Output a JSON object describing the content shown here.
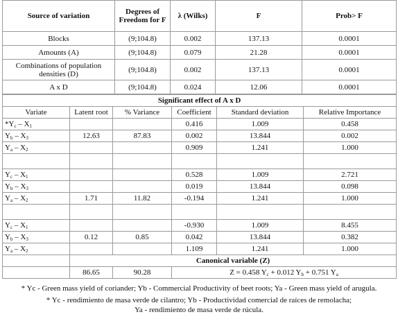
{
  "table": {
    "header": [
      "Source of variation",
      "Degrees of Freedom for F",
      "λ (Wilks)",
      "F",
      "Prob> F"
    ],
    "rows": [
      [
        "Blocks",
        "(9;104.8)",
        "0.002",
        "137.13",
        "0.0001"
      ],
      [
        "Amounts (A)",
        "(9;104.8)",
        "0.079",
        "21.28",
        "0.0001"
      ],
      [
        "Combinations of population densities (D)",
        "(9;104.8)",
        "0.002",
        "137.13",
        "0.0001"
      ],
      [
        "A x D",
        "(9;104.8)",
        "0.024",
        "12.06",
        "0.0001"
      ]
    ],
    "section_title": "Significant effect of A x D",
    "sub_header": [
      "Variate",
      "Latent root",
      "% Variance",
      "Coefficient",
      "Standard deviation",
      "Relative Importance"
    ],
    "groups": [
      {
        "rows": [
          {
            "variate": [
              "*Y",
              "c",
              " – X",
              "1"
            ],
            "coefficient": "0.416",
            "sd": "1.009",
            "importance": "0.458"
          },
          {
            "variate": [
              "Y",
              "b",
              " – X",
              "3"
            ],
            "latent_root": "12.63",
            "variance": "87.83",
            "coefficient": "0.002",
            "sd": "13.844",
            "importance": "0.002"
          },
          {
            "variate": [
              "Y",
              "a",
              " – X",
              "2"
            ],
            "coefficient": "0.909",
            "sd": "1.241",
            "importance": "1.000"
          }
        ]
      },
      {
        "rows": [
          {
            "variate": [
              "Y",
              "c",
              " – X",
              "1"
            ],
            "coefficient": "0.528",
            "sd": "1.009",
            "importance": "2.721"
          },
          {
            "variate": [
              "Y",
              "b",
              " – X",
              "3"
            ],
            "coefficient": "0.019",
            "sd": "13.844",
            "importance": "0.098"
          },
          {
            "variate": [
              "Y",
              "a",
              " – X",
              "2"
            ],
            "latent_root": "1.71",
            "variance": "11.82",
            "coefficient": "-0.194",
            "sd": "1.241",
            "importance": "1.000"
          }
        ]
      },
      {
        "rows": [
          {
            "variate": [
              "Y",
              "c",
              " – X",
              "1"
            ],
            "coefficient": "-0.930",
            "sd": "1.009",
            "importance": "8.455"
          },
          {
            "variate": [
              "Y",
              "b",
              " – X",
              "3"
            ],
            "latent_root": "0.12",
            "variance": "0.85",
            "coefficient": "0.042",
            "sd": "13.844",
            "importance": "0.382"
          },
          {
            "variate": [
              "Y",
              "a",
              " – X",
              "2"
            ],
            "coefficient": "1.109",
            "sd": "1.241",
            "importance": "1.000"
          }
        ]
      }
    ],
    "canonical": {
      "label": "Canonical variable (Z)",
      "latent_root": "86.65",
      "variance": "90.28",
      "equation": [
        "Z = 0.458 Y",
        "c",
        " + 0.012 Y",
        "b",
        " + 0.751 Y",
        "a"
      ]
    }
  },
  "footnotes": [
    "* Yc - Green mass yield of coriander; Yb - Commercial Productivity of beet roots; Ya - Green mass yield of arugula.",
    "* Yc - rendimiento de masa verde de cilantro; Yb - Productividad comercial de raíces de remolacha;",
    "Ya - rendimiento de masa verde de rúcula."
  ]
}
